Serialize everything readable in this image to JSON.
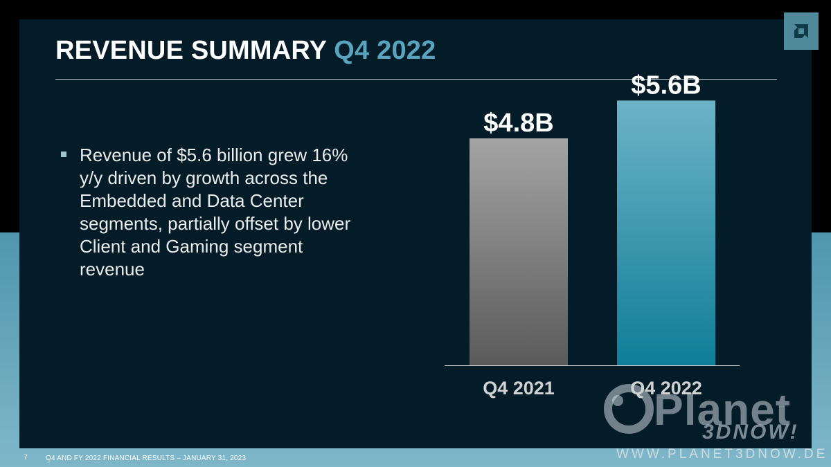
{
  "title": {
    "main": "REVENUE SUMMARY",
    "accent": "Q4 2022"
  },
  "bullet": {
    "text": "Revenue of $5.6 billion grew 16% y/y driven by growth across the Embedded and Data Center segments, partially offset by lower Client and Gaming segment revenue"
  },
  "chart_data": {
    "type": "bar",
    "categories": [
      "Q4 2021",
      "Q4 2022"
    ],
    "values": [
      4.8,
      5.6
    ],
    "value_labels": [
      "$4.8B",
      "$5.6B"
    ],
    "unit": "$B",
    "title": "",
    "xlabel": "",
    "ylabel": "",
    "ylim": [
      0,
      6.0
    ],
    "grid": false,
    "legend": "none",
    "colors": {
      "bar_2021_top": "#a4a4a4",
      "bar_2021_bottom": "#5a5a5a",
      "bar_2022_top": "#6db3c7",
      "bar_2022_bottom": "#0f7e97",
      "label": "#ffffff",
      "axis": "#d0d0d0"
    }
  },
  "footer": {
    "page_number": "7",
    "text": "Q4 AND FY 2022 FINANCIAL RESULTS – JANUARY 31, 2023"
  },
  "watermark": {
    "brand": "Planet",
    "sub": "3DNOW!",
    "url": "WWW.PLANET3DNOW.DE"
  },
  "icons": {
    "logo": "amd-logo-icon",
    "bullet": "square-bullet-icon",
    "watermark_ring": "planet-ring-icon"
  }
}
